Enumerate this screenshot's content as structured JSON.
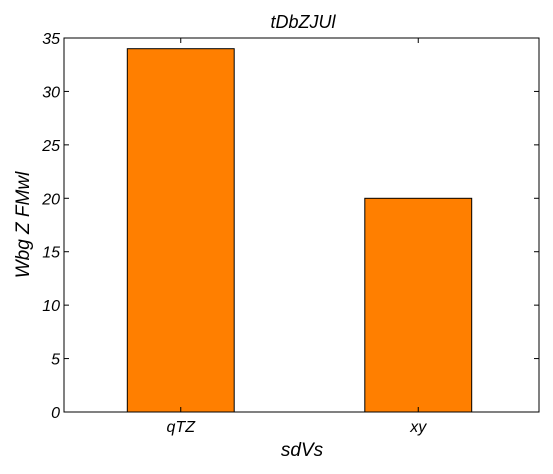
{
  "chart_data": {
    "type": "bar",
    "title": "tDbZJUl",
    "xlabel": "sdVs",
    "ylabel": "Wbg Z  FMwl",
    "categories": [
      "qTZ",
      "xy"
    ],
    "values": [
      34,
      20
    ],
    "ylim": [
      0,
      35
    ],
    "yticks": [
      0,
      5,
      10,
      15,
      20,
      25,
      30,
      35
    ],
    "grid": false,
    "legend": "none",
    "bar_color": "#ff7f00",
    "edge_color": "#000000"
  }
}
